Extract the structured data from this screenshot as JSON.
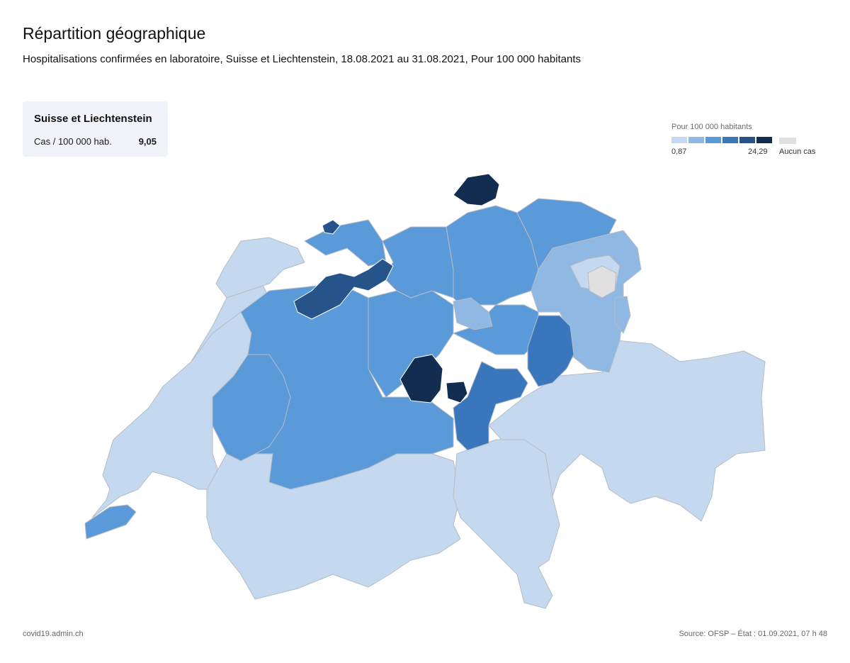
{
  "header": {
    "title": "Répartition géographique",
    "subtitle": "Hospitalisations confirmées en laboratoire, Suisse et Liechtenstein, 18.08.2021 au 31.08.2021, Pour 100 000 habitants"
  },
  "summary": {
    "region": "Suisse et Liechtenstein",
    "metric_label": "Cas / 100 000 hab.",
    "metric_value": "9,05"
  },
  "legend": {
    "title": "Pour 100 000 habitants",
    "min_label": "0,87",
    "max_label": "24,29",
    "no_cases_label": "Aucun cas",
    "no_cases_color": "#e0e0e0",
    "scale_colors": [
      "#c4d9ef",
      "#8fb8e2",
      "#5b9ad8",
      "#3a76bb",
      "#25538a",
      "#122d4f"
    ]
  },
  "map": {
    "border_color": "#b5bcc4",
    "cantons": [
      {
        "name": "GE",
        "level": 2
      },
      {
        "name": "VD",
        "level": 0
      },
      {
        "name": "VS",
        "level": 0
      },
      {
        "name": "FR",
        "level": 2
      },
      {
        "name": "NE",
        "level": 0
      },
      {
        "name": "JU",
        "level": 0
      },
      {
        "name": "BE",
        "level": 2
      },
      {
        "name": "SO",
        "level": 4
      },
      {
        "name": "BS",
        "level": 4
      },
      {
        "name": "BL",
        "level": 2
      },
      {
        "name": "AG",
        "level": 2
      },
      {
        "name": "LU",
        "level": 2
      },
      {
        "name": "ZG",
        "level": 1
      },
      {
        "name": "ZH",
        "level": 2
      },
      {
        "name": "SH",
        "level": 5
      },
      {
        "name": "TG",
        "level": 2
      },
      {
        "name": "SG",
        "level": 1
      },
      {
        "name": "AR",
        "level": 0
      },
      {
        "name": "AI",
        "level": -1
      },
      {
        "name": "GL",
        "level": 3
      },
      {
        "name": "SZ",
        "level": 2
      },
      {
        "name": "OW",
        "level": 5
      },
      {
        "name": "NW",
        "level": 5
      },
      {
        "name": "UR",
        "level": 3
      },
      {
        "name": "GR",
        "level": 0
      },
      {
        "name": "TI",
        "level": 0
      },
      {
        "name": "FL",
        "level": 1
      }
    ]
  },
  "footer": {
    "site": "covid19.admin.ch",
    "source": "Source: OFSP – État : 01.09.2021, 07 h 48"
  }
}
